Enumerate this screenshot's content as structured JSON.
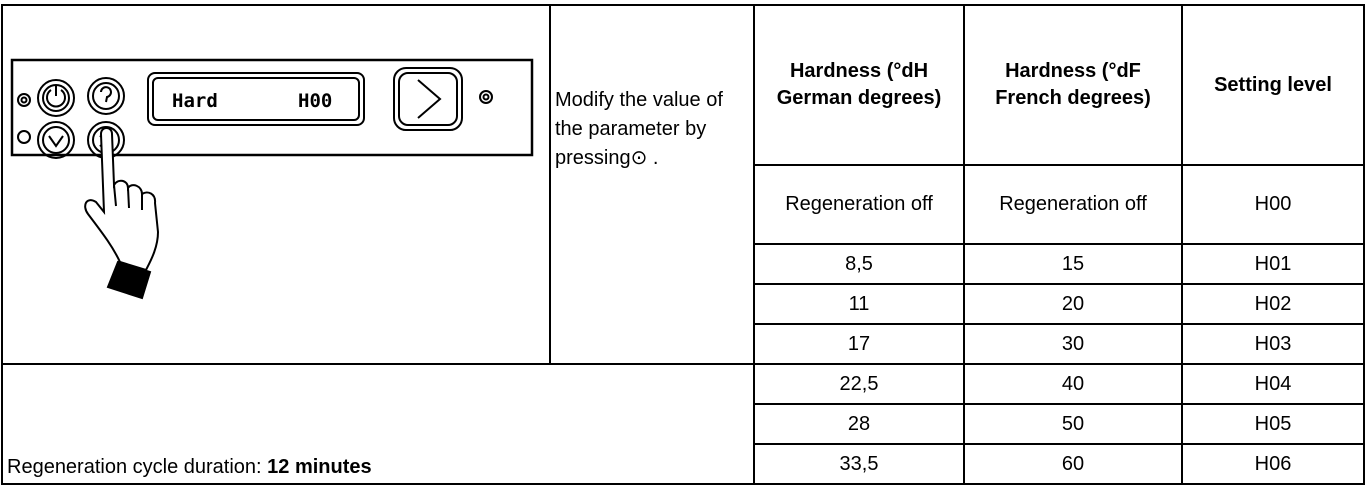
{
  "panel": {
    "display_label": "Hard",
    "display_value": "H00"
  },
  "instruction": "Modify the value of the parameter by pressing⊙ .",
  "table": {
    "headers": [
      "Hardness (°dH German degrees)",
      "Hardness (°dF French degrees)",
      "Setting level"
    ],
    "rows": [
      [
        "Regeneration off",
        "Regeneration off",
        "H00"
      ],
      [
        "8,5",
        "15",
        "H01"
      ],
      [
        "11",
        "20",
        "H02"
      ],
      [
        "17",
        "30",
        "H03"
      ],
      [
        "22,5",
        "40",
        "H04"
      ],
      [
        "28",
        "50",
        "H05"
      ],
      [
        "33,5",
        "60",
        "H06"
      ]
    ]
  },
  "footer": {
    "label": "Regeneration cycle duration: ",
    "value": "12 minutes"
  }
}
